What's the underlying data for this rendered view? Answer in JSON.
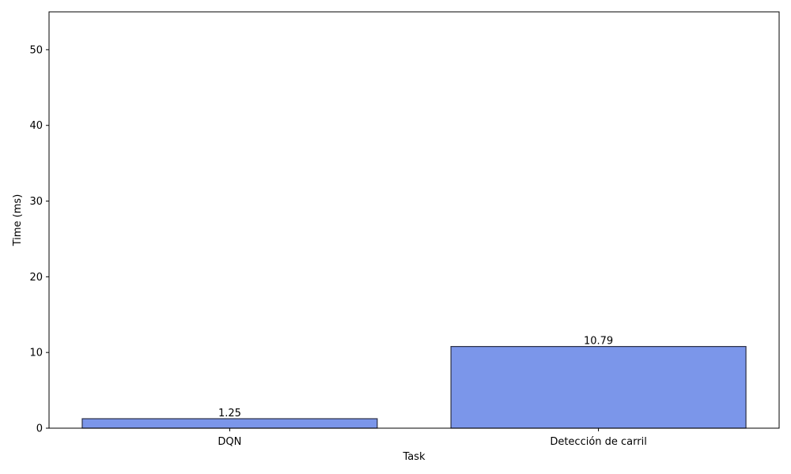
{
  "chart_data": {
    "type": "bar",
    "title": "",
    "xlabel": "Task",
    "ylabel": "Time (ms)",
    "categories": [
      "DQN",
      "Detección de carril"
    ],
    "values": [
      1.25,
      10.79
    ],
    "value_labels": [
      "1.25",
      "10.79"
    ],
    "ylim": [
      0,
      55
    ],
    "yticks": [
      0,
      10,
      20,
      30,
      40,
      50
    ],
    "ytick_labels": [
      "0",
      "10",
      "20",
      "30",
      "40",
      "50"
    ],
    "grid": false,
    "legend": "none",
    "colors": {
      "bar_fill": "#7b96ea",
      "bar_edge": "#2b2f45",
      "axis": "#000000"
    }
  }
}
